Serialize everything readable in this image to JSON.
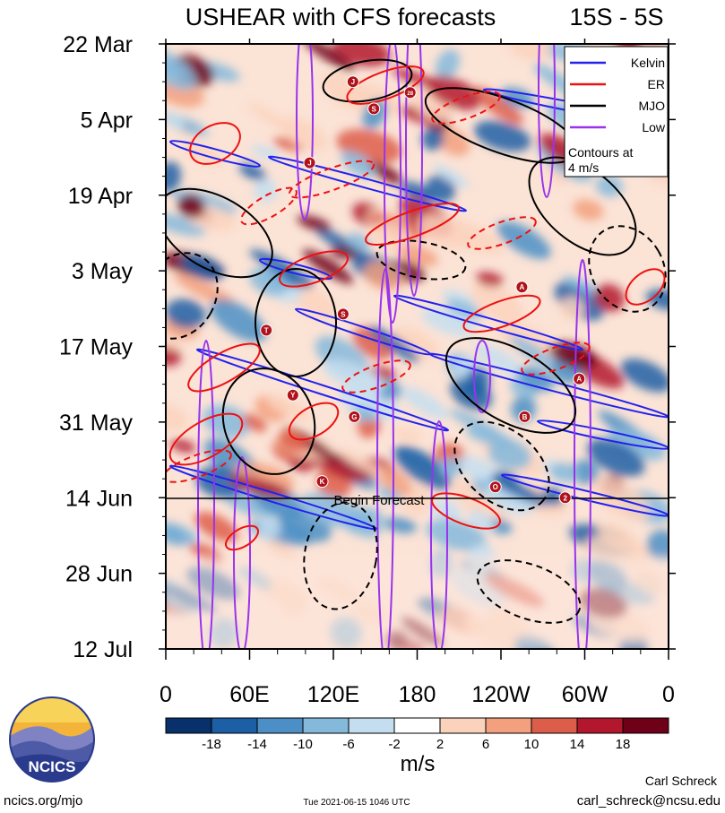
{
  "chart_data": {
    "type": "heatmap",
    "title": "USHEAR with CFS forecasts",
    "region": "15S - 5S",
    "y_ticks": [
      "22 Mar",
      "5 Apr",
      "19 Apr",
      "3 May",
      "17 May",
      "31 May",
      "14 Jun",
      "28 Jun",
      "12 Jul"
    ],
    "x_ticks": [
      "0",
      "60E",
      "120E",
      "180",
      "120W",
      "60W",
      "0"
    ],
    "x_range": [
      0,
      360
    ],
    "y_range": [
      "2021-03-22",
      "2021-07-12"
    ],
    "grid": false,
    "forecast_line": {
      "date": "2021-06-14",
      "label": "Begin Forecast"
    },
    "legend": {
      "position": "top-right",
      "entries": [
        {
          "name": "Kelvin",
          "color": "#2222ee"
        },
        {
          "name": "ER",
          "color": "#ee1111"
        },
        {
          "name": "MJO",
          "color": "#000000"
        },
        {
          "name": "Low",
          "color": "#9933ee"
        }
      ],
      "note_line1": "Contours at",
      "note_line2": "4 m/s"
    },
    "colorbar": {
      "unit": "m/s",
      "tick_labels": [
        "-18",
        "-14",
        "-10",
        "-6",
        "-2",
        "2",
        "6",
        "10",
        "14",
        "18"
      ],
      "colors": [
        "#08306b",
        "#1d5fa4",
        "#4b8fc6",
        "#84b9dc",
        "#c4def0",
        "#ffffff",
        "#fbd3bd",
        "#f2a07e",
        "#dd5d4b",
        "#b3172d",
        "#6e0018"
      ]
    },
    "storm_markers": [
      {
        "label": "J",
        "lon": 134,
        "date": "2021-03-29"
      },
      {
        "label": "S",
        "lon": 149,
        "date": "2021-04-03"
      },
      {
        "label": "28",
        "lon": 175,
        "date": "2021-03-31"
      },
      {
        "label": "J",
        "lon": 103,
        "date": "2021-04-13"
      },
      {
        "label": "A",
        "lon": 255,
        "date": "2021-05-06"
      },
      {
        "label": "S",
        "lon": 127,
        "date": "2021-05-11"
      },
      {
        "label": "T",
        "lon": 72,
        "date": "2021-05-14"
      },
      {
        "label": "A",
        "lon": 296,
        "date": "2021-05-23"
      },
      {
        "label": "Y",
        "lon": 91,
        "date": "2021-05-26"
      },
      {
        "label": "G",
        "lon": 135,
        "date": "2021-05-30"
      },
      {
        "label": "B",
        "lon": 257,
        "date": "2021-05-30"
      },
      {
        "label": "K",
        "lon": 112,
        "date": "2021-06-11"
      },
      {
        "label": "O",
        "lon": 236,
        "date": "2021-06-12"
      },
      {
        "label": "2",
        "lon": 286,
        "date": "2021-06-14"
      }
    ]
  },
  "footer": {
    "site": "ncics.org/mjo",
    "timestamp": "Tue 2021-06-15 1046 UTC",
    "author": "Carl Schreck",
    "email": "carl_schreck@ncsu.edu",
    "logo_text": "NCICS"
  }
}
